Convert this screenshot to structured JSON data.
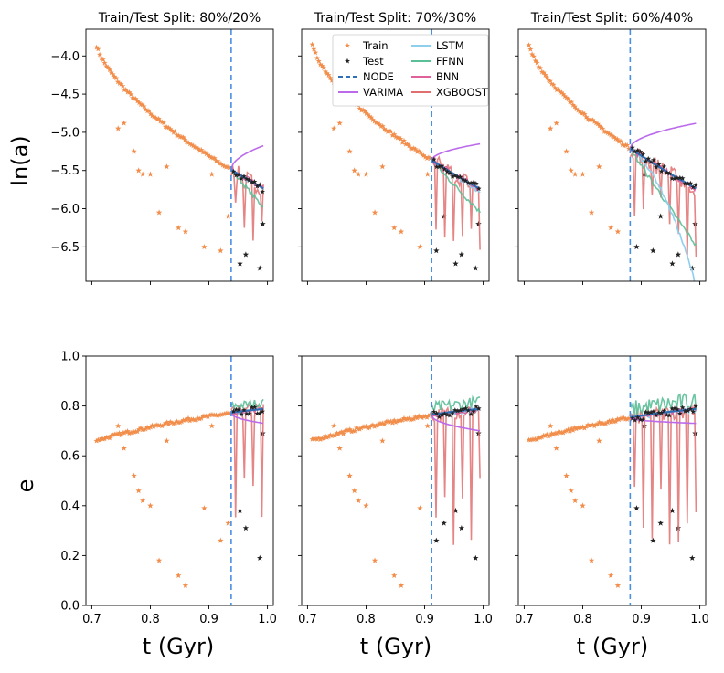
{
  "figure": {
    "ylabel_top": "ln(a)",
    "ylabel_bottom": "e",
    "xlabel": "t (Gyr)"
  },
  "legend": [
    {
      "key": "train",
      "label": "Train",
      "kind": "star",
      "color": "#f28e4c"
    },
    {
      "key": "test",
      "label": "Test",
      "kind": "star",
      "color": "#222222"
    },
    {
      "key": "node",
      "label": "NODE",
      "kind": "dash",
      "color": "#2f6fb5"
    },
    {
      "key": "varima",
      "label": "VARIMA",
      "kind": "line",
      "color": "#bb6bea"
    },
    {
      "key": "lstm",
      "label": "LSTM",
      "kind": "line",
      "color": "#8ecfee"
    },
    {
      "key": "ffnn",
      "label": "FFNN",
      "kind": "line",
      "color": "#5bbf98"
    },
    {
      "key": "bnn",
      "label": "BNN",
      "kind": "line",
      "color": "#e0609a"
    },
    {
      "key": "xgboost",
      "label": "XGBOOST",
      "kind": "line",
      "color": "#e07070"
    }
  ],
  "chart_data": {
    "type": "scatter",
    "xlim": [
      0.69,
      1.01
    ],
    "xticks": [
      0.7,
      0.8,
      0.9,
      1.0
    ],
    "xtick_labels": [
      "0.7",
      "0.8",
      "0.9",
      "1.0"
    ],
    "top_ylim": [
      -6.95,
      -3.65
    ],
    "top_yticks": [
      -4.0,
      -4.5,
      -5.0,
      -5.5,
      -6.0,
      -6.5
    ],
    "top_ytick_labels": [
      "−4.0",
      "−4.5",
      "−5.0",
      "−5.5",
      "−6.0",
      "−6.5"
    ],
    "bottom_ylim": [
      0.0,
      1.0
    ],
    "bottom_yticks": [
      0.0,
      0.2,
      0.4,
      0.6,
      0.8,
      1.0
    ],
    "bottom_ytick_labels": [
      "0.0",
      "0.2",
      "0.4",
      "0.6",
      "0.8",
      "1.0"
    ],
    "panels": [
      {
        "title": "Train/Test Split: 80%/20%",
        "split": 0.938,
        "lstm_drop": 0.0,
        "ffnn_drop": 0.25,
        "varima_a_end": -5.17,
        "varima_e_end": 0.73,
        "model_noise": 0.03,
        "xgb_amp": 0.5
      },
      {
        "title": "Train/Test Split: 70%/30%",
        "split": 0.912,
        "lstm_drop": 0.05,
        "ffnn_drop": 0.3,
        "varima_a_end": -5.15,
        "varima_e_end": 0.7,
        "model_noise": 0.04,
        "xgb_amp": 0.55
      },
      {
        "title": "Train/Test Split: 60%/40%",
        "split": 0.881,
        "lstm_drop": 1.3,
        "ffnn_drop": 0.75,
        "varima_a_end": -4.88,
        "varima_e_end": 0.73,
        "model_noise": 0.06,
        "xgb_amp": 0.6
      }
    ],
    "outliers": {
      "a": [
        {
          "t": 0.745,
          "v": -4.95
        },
        {
          "t": 0.755,
          "v": -4.88
        },
        {
          "t": 0.772,
          "v": -5.25
        },
        {
          "t": 0.78,
          "v": -5.5
        },
        {
          "t": 0.787,
          "v": -5.55
        },
        {
          "t": 0.8,
          "v": -5.55
        },
        {
          "t": 0.815,
          "v": -6.05
        },
        {
          "t": 0.828,
          "v": -5.45
        },
        {
          "t": 0.848,
          "v": -6.25
        },
        {
          "t": 0.86,
          "v": -6.3
        },
        {
          "t": 0.892,
          "v": -6.5
        },
        {
          "t": 0.905,
          "v": -5.55
        },
        {
          "t": 0.92,
          "v": -6.55
        },
        {
          "t": 0.933,
          "v": -6.1
        },
        {
          "t": 0.953,
          "v": -6.72
        },
        {
          "t": 0.963,
          "v": -6.6
        },
        {
          "t": 0.987,
          "v": -6.78
        },
        {
          "t": 0.992,
          "v": -6.2
        }
      ],
      "e": [
        {
          "t": 0.745,
          "v": 0.72
        },
        {
          "t": 0.755,
          "v": 0.63
        },
        {
          "t": 0.772,
          "v": 0.52
        },
        {
          "t": 0.78,
          "v": 0.46
        },
        {
          "t": 0.787,
          "v": 0.42
        },
        {
          "t": 0.8,
          "v": 0.4
        },
        {
          "t": 0.815,
          "v": 0.18
        },
        {
          "t": 0.828,
          "v": 0.66
        },
        {
          "t": 0.848,
          "v": 0.12
        },
        {
          "t": 0.86,
          "v": 0.08
        },
        {
          "t": 0.892,
          "v": 0.39
        },
        {
          "t": 0.905,
          "v": 0.72
        },
        {
          "t": 0.92,
          "v": 0.26
        },
        {
          "t": 0.933,
          "v": 0.33
        },
        {
          "t": 0.953,
          "v": 0.38
        },
        {
          "t": 0.963,
          "v": 0.31
        },
        {
          "t": 0.987,
          "v": 0.19
        },
        {
          "t": 0.992,
          "v": 0.69
        }
      ]
    }
  }
}
